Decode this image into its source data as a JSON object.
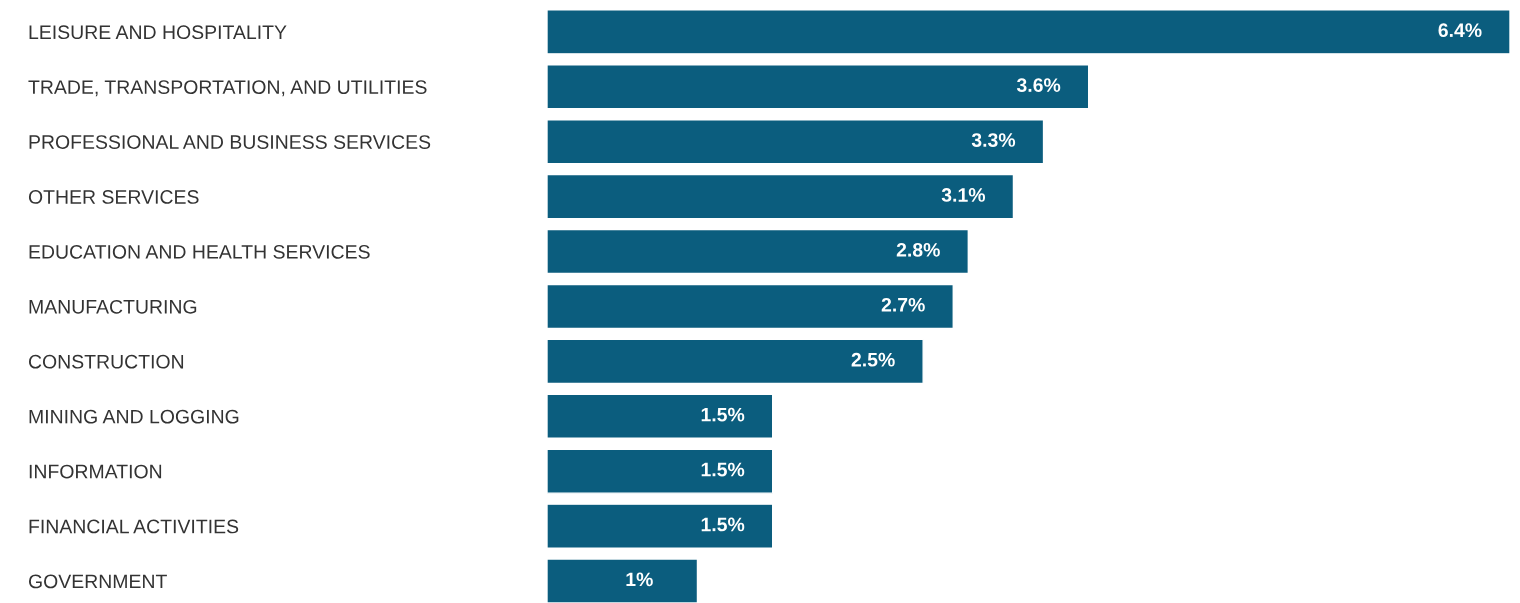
{
  "chart_data": {
    "type": "bar",
    "orientation": "horizontal",
    "categories": [
      "LEISURE AND HOSPITALITY",
      "TRADE, TRANSPORTATION, AND UTILITIES",
      "PROFESSIONAL AND BUSINESS SERVICES",
      "OTHER SERVICES",
      "EDUCATION AND HEALTH SERVICES",
      "MANUFACTURING",
      "CONSTRUCTION",
      "MINING AND LOGGING",
      "INFORMATION",
      "FINANCIAL ACTIVITIES",
      "GOVERNMENT"
    ],
    "values": [
      6.4,
      3.6,
      3.3,
      3.1,
      2.8,
      2.7,
      2.5,
      1.5,
      1.5,
      1.5,
      1
    ],
    "value_labels": [
      "6.4%",
      "3.6%",
      "3.3%",
      "3.1%",
      "2.8%",
      "2.7%",
      "2.5%",
      "1.5%",
      "1.5%",
      "1.5%",
      "1%"
    ],
    "color": "#0b5d7e",
    "grid": false,
    "legend": false,
    "tick_labels": "y"
  }
}
